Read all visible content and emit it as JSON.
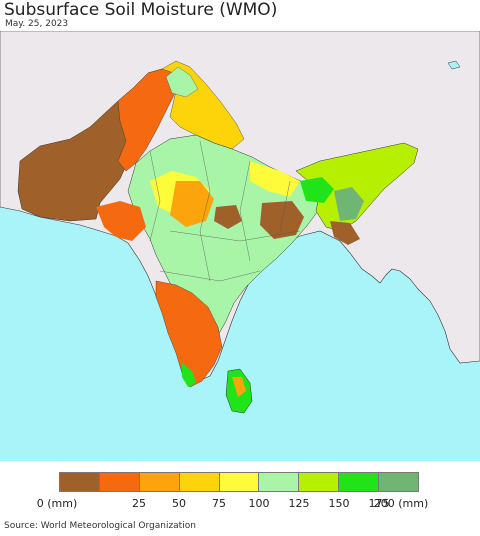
{
  "header": {
    "title": "Subsurface Soil Moisture (WMO)",
    "date": "May. 25, 2023"
  },
  "legend": {
    "labels": [
      "0 (mm)",
      "25",
      "50",
      "75",
      "100",
      "125",
      "150",
      "175",
      "200 (mm)"
    ],
    "colors": [
      "#a0602a",
      "#f56a10",
      "#fba40c",
      "#fdd40a",
      "#fdfb3a",
      "#a8f5a8",
      "#b6f000",
      "#20e31a",
      "#6fb675"
    ]
  },
  "footer": {
    "source": "Source: World Meteorological Organization"
  },
  "map": {
    "colors": {
      "ocean": "#a8f4f8",
      "land_outside": "#ece8ec",
      "border": "#222222"
    }
  }
}
